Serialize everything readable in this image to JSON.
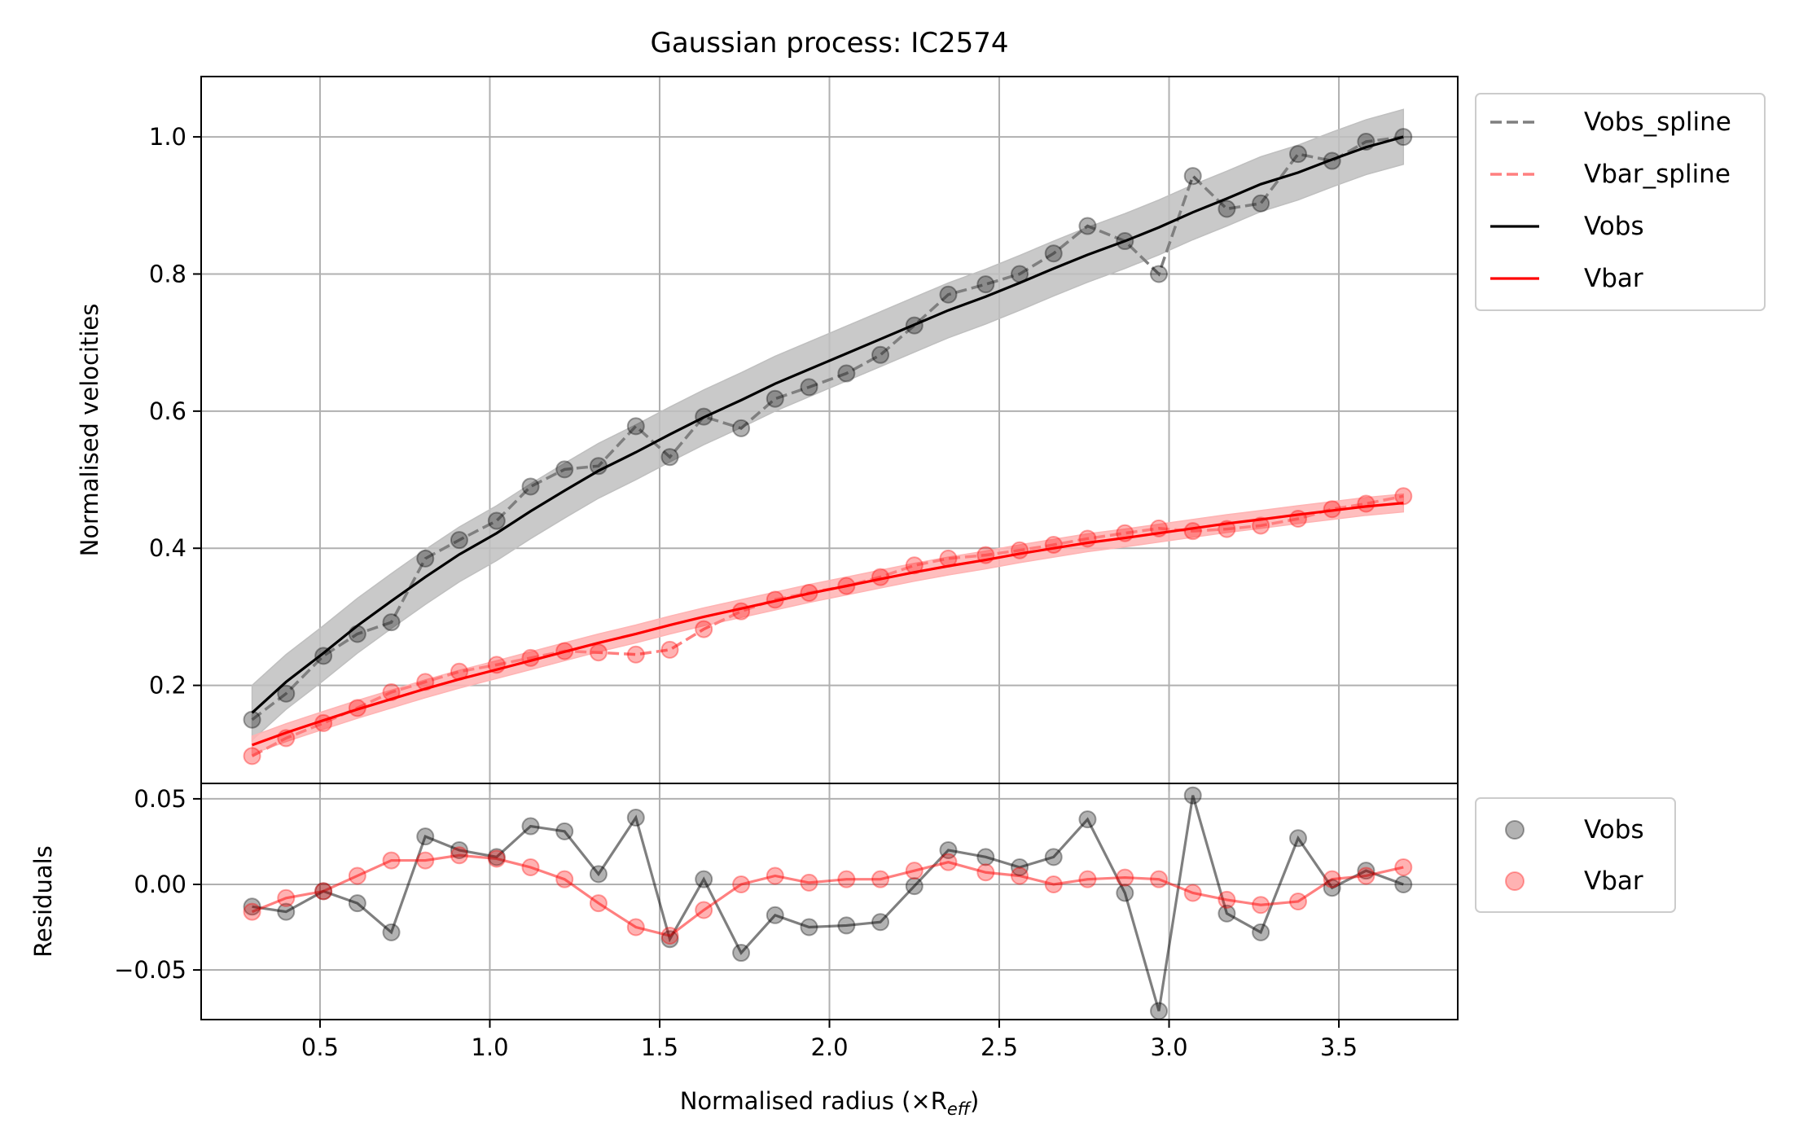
{
  "chart_data": [
    {
      "type": "line",
      "title": "Gaussian process: IC2574",
      "xlabel": "",
      "ylabel": "Normalised velocities",
      "xlim": [
        0.15,
        3.85
      ],
      "ylim": [
        0.057,
        1.088
      ],
      "xticks": [
        0.5,
        1.0,
        1.5,
        2.0,
        2.5,
        3.0,
        3.5
      ],
      "yticks": [
        0.2,
        0.4,
        0.6,
        0.8,
        1.0
      ],
      "ytick_labels": [
        "0.2",
        "0.4",
        "0.6",
        "0.8",
        "1.0"
      ],
      "grid": true,
      "legend_placement": "outside-top-right",
      "x": [
        0.3,
        0.4,
        0.51,
        0.61,
        0.71,
        0.81,
        0.91,
        1.02,
        1.12,
        1.22,
        1.32,
        1.43,
        1.53,
        1.63,
        1.74,
        1.84,
        1.94,
        2.05,
        2.15,
        2.25,
        2.35,
        2.46,
        2.56,
        2.66,
        2.76,
        2.87,
        2.97,
        3.07,
        3.17,
        3.27,
        3.38,
        3.48,
        3.58,
        3.69
      ],
      "series": [
        {
          "name": "Vobs_spline",
          "style": "dashed",
          "color": "#7f7f7f",
          "values": [
            0.15,
            0.188,
            0.243,
            0.275,
            0.292,
            0.385,
            0.412,
            0.44,
            0.49,
            0.515,
            0.52,
            0.578,
            0.533,
            0.592,
            0.575,
            0.618,
            0.635,
            0.655,
            0.682,
            0.725,
            0.77,
            0.785,
            0.8,
            0.83,
            0.87,
            0.848,
            0.8,
            0.943,
            0.895,
            0.903,
            0.975,
            0.965,
            0.993,
            1.0
          ]
        },
        {
          "name": "Vbar_spline",
          "style": "dashed",
          "color": "#ff7f7f",
          "values": [
            0.097,
            0.123,
            0.145,
            0.167,
            0.19,
            0.205,
            0.22,
            0.23,
            0.24,
            0.25,
            0.248,
            0.245,
            0.252,
            0.282,
            0.308,
            0.325,
            0.335,
            0.345,
            0.358,
            0.375,
            0.385,
            0.39,
            0.397,
            0.405,
            0.414,
            0.422,
            0.429,
            0.425,
            0.428,
            0.433,
            0.443,
            0.457,
            0.465,
            0.476
          ]
        },
        {
          "name": "Vobs",
          "style": "solid",
          "color": "#000000",
          "values": [
            0.16,
            0.205,
            0.247,
            0.287,
            0.323,
            0.358,
            0.391,
            0.422,
            0.454,
            0.484,
            0.513,
            0.54,
            0.566,
            0.591,
            0.616,
            0.64,
            0.661,
            0.684,
            0.705,
            0.726,
            0.747,
            0.767,
            0.787,
            0.808,
            0.828,
            0.848,
            0.868,
            0.89,
            0.91,
            0.931,
            0.948,
            0.967,
            0.985,
            1.0
          ]
        },
        {
          "name": "Vbar",
          "style": "solid",
          "color": "#ff0000",
          "values": [
            0.113,
            0.131,
            0.149,
            0.165,
            0.18,
            0.195,
            0.209,
            0.223,
            0.236,
            0.249,
            0.262,
            0.275,
            0.288,
            0.3,
            0.312,
            0.323,
            0.334,
            0.345,
            0.355,
            0.365,
            0.374,
            0.383,
            0.392,
            0.4,
            0.408,
            0.415,
            0.422,
            0.429,
            0.436,
            0.442,
            0.449,
            0.455,
            0.461,
            0.466
          ]
        }
      ],
      "bands": [
        {
          "series": "Vobs",
          "half_width": 0.04,
          "color": "#bfbfbf"
        },
        {
          "series": "Vbar",
          "half_width": 0.013,
          "color": "#ffb3b3"
        }
      ]
    },
    {
      "type": "scatter",
      "xlabel": "Normalised radius (×R",
      "xlabel_sub": "eff",
      "xlabel_suffix": ")",
      "ylabel": "Residuals",
      "xlim": [
        0.15,
        3.85
      ],
      "ylim": [
        -0.079,
        0.059
      ],
      "xticks": [
        0.5,
        1.0,
        1.5,
        2.0,
        2.5,
        3.0,
        3.5
      ],
      "xtick_labels": [
        "0.5",
        "1.0",
        "1.5",
        "2.0",
        "2.5",
        "3.0",
        "3.5"
      ],
      "yticks": [
        0.05,
        0.0,
        -0.05
      ],
      "ytick_labels": [
        "0.05",
        "0.00",
        "−0.05"
      ],
      "grid": true,
      "legend_placement": "outside-top-right",
      "x": [
        0.3,
        0.4,
        0.51,
        0.61,
        0.71,
        0.81,
        0.91,
        1.02,
        1.12,
        1.22,
        1.32,
        1.43,
        1.53,
        1.63,
        1.74,
        1.84,
        1.94,
        2.05,
        2.15,
        2.25,
        2.35,
        2.46,
        2.56,
        2.66,
        2.76,
        2.87,
        2.97,
        3.07,
        3.17,
        3.27,
        3.38,
        3.48,
        3.58,
        3.69
      ],
      "series": [
        {
          "name": "Vobs",
          "color": "#000000",
          "values": [
            -0.013,
            -0.016,
            -0.004,
            -0.011,
            -0.028,
            0.028,
            0.02,
            0.016,
            0.034,
            0.031,
            0.006,
            0.039,
            -0.032,
            0.003,
            -0.04,
            -0.018,
            -0.025,
            -0.024,
            -0.022,
            -0.001,
            0.02,
            0.016,
            0.01,
            0.016,
            0.038,
            -0.005,
            -0.074,
            0.052,
            -0.017,
            -0.028,
            0.027,
            -0.002,
            0.008,
            0.0
          ]
        },
        {
          "name": "Vbar",
          "color": "#ff0000",
          "values": [
            -0.016,
            -0.008,
            -0.004,
            0.005,
            0.014,
            0.014,
            0.017,
            0.015,
            0.01,
            0.003,
            -0.011,
            -0.025,
            -0.03,
            -0.015,
            0.0,
            0.005,
            0.001,
            0.003,
            0.003,
            0.008,
            0.013,
            0.007,
            0.005,
            0.0,
            0.003,
            0.004,
            0.003,
            -0.005,
            -0.009,
            -0.012,
            -0.01,
            0.003,
            0.005,
            0.01
          ]
        }
      ]
    }
  ]
}
